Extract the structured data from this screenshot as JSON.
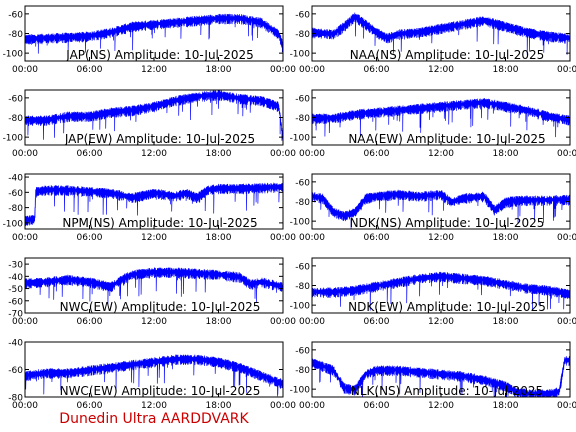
{
  "footer": {
    "text": "Dunedin Ultra AARDDVARK",
    "color": "#cc0000"
  },
  "colors": {
    "trace": "#0000ff",
    "axis": "#000000",
    "background": "#ffffff"
  },
  "chart_data": [
    {
      "type": "line",
      "title": "JAP(NS) Amplitude: 10-Jul-2025",
      "yticks": [
        -60,
        -80,
        -100
      ],
      "ylim": [
        -108,
        -52
      ],
      "xticks": [
        "00:00",
        "06:00",
        "12:00",
        "18:00",
        "00:00"
      ],
      "xlim": [
        0,
        24
      ],
      "series": [
        {
          "x": [
            0,
            2,
            4,
            6,
            8,
            10,
            12,
            14,
            16,
            18,
            20,
            22,
            23.6,
            24
          ],
          "y": [
            -85,
            -84,
            -83,
            -82,
            -78,
            -72,
            -70,
            -68,
            -66,
            -64,
            -64,
            -68,
            -80,
            -92
          ]
        }
      ]
    },
    {
      "type": "line",
      "title": "NAA(NS) Amplitude: 10-Jul-2025",
      "yticks": [
        -60,
        -80,
        -100
      ],
      "ylim": [
        -108,
        -52
      ],
      "xticks": [
        "00:00",
        "06:00",
        "12:00",
        "18:00",
        "00:00"
      ],
      "xlim": [
        0,
        24
      ],
      "series": [
        {
          "x": [
            0,
            2,
            3,
            4,
            5,
            6,
            7,
            8,
            10,
            12,
            14,
            16,
            18,
            20,
            22,
            24
          ],
          "y": [
            -78,
            -80,
            -72,
            -62,
            -70,
            -78,
            -84,
            -80,
            -78,
            -74,
            -70,
            -66,
            -72,
            -78,
            -82,
            -84
          ]
        }
      ]
    },
    {
      "type": "line",
      "title": "JAP(EW) Amplitude: 10-Jul-2025",
      "yticks": [
        -60,
        -80,
        -100
      ],
      "ylim": [
        -108,
        -52
      ],
      "xticks": [
        "00:00",
        "06:00",
        "12:00",
        "18:00",
        "00:00"
      ],
      "xlim": [
        0,
        24
      ],
      "series": [
        {
          "x": [
            0,
            2,
            4,
            6,
            8,
            10,
            12,
            14,
            16,
            18,
            20,
            22,
            23.6,
            24
          ],
          "y": [
            -82,
            -82,
            -78,
            -78,
            -74,
            -72,
            -68,
            -62,
            -58,
            -56,
            -60,
            -62,
            -68,
            -100
          ]
        }
      ]
    },
    {
      "type": "line",
      "title": "NAA(EW) Amplitude: 10-Jul-2025",
      "yticks": [
        -60,
        -80,
        -100
      ],
      "ylim": [
        -108,
        -52
      ],
      "xticks": [
        "00:00",
        "06:00",
        "12:00",
        "18:00",
        "00:00"
      ],
      "xlim": [
        0,
        24
      ],
      "series": [
        {
          "x": [
            0,
            2,
            4,
            6,
            8,
            10,
            12,
            14,
            16,
            18,
            20,
            22,
            24
          ],
          "y": [
            -80,
            -80,
            -76,
            -74,
            -72,
            -70,
            -68,
            -66,
            -64,
            -68,
            -72,
            -78,
            -82
          ]
        }
      ]
    },
    {
      "type": "line",
      "title": "NPM(NS) Amplitude: 10-Jul-2025",
      "yticks": [
        -40,
        -60,
        -80,
        -100
      ],
      "ylim": [
        -108,
        -36
      ],
      "xticks": [
        "00:00",
        "06:00",
        "12:00",
        "18:00",
        "00:00"
      ],
      "xlim": [
        0,
        24
      ],
      "series": [
        {
          "x": [
            0,
            0.9,
            1,
            2,
            4,
            6,
            8,
            10,
            12,
            14,
            15,
            16,
            17,
            18,
            20,
            22,
            24
          ],
          "y": [
            -96,
            -94,
            -58,
            -56,
            -56,
            -58,
            -60,
            -66,
            -60,
            -64,
            -60,
            -66,
            -56,
            -54,
            -54,
            -53,
            -52
          ]
        }
      ]
    },
    {
      "type": "line",
      "title": "NDK(NS) Amplitude: 10-Jul-2025",
      "yticks": [
        -60,
        -80,
        -100
      ],
      "ylim": [
        -108,
        -52
      ],
      "xticks": [
        "00:00",
        "06:00",
        "12:00",
        "18:00",
        "00:00"
      ],
      "xlim": [
        0,
        24
      ],
      "series": [
        {
          "x": [
            0,
            1,
            2,
            3,
            4,
            5,
            6,
            8,
            10,
            12,
            13,
            14,
            16,
            17,
            18,
            19,
            20,
            22,
            24
          ],
          "y": [
            -74,
            -76,
            -90,
            -94,
            -90,
            -76,
            -74,
            -72,
            -74,
            -72,
            -80,
            -76,
            -74,
            -88,
            -80,
            -78,
            -78,
            -78,
            -77
          ]
        }
      ]
    },
    {
      "type": "line",
      "title": "NWC(EW) Amplitude: 10-Jul-2025",
      "yticks": [
        -30,
        -40,
        -50,
        -60,
        -70
      ],
      "ylim": [
        -70,
        -25
      ],
      "xticks": [
        "00:00",
        "06:00",
        "12:00",
        "18:00",
        "00:00"
      ],
      "xlim": [
        0,
        24
      ],
      "series": [
        {
          "x": [
            0,
            2,
            4,
            6,
            8,
            9,
            10,
            12,
            14,
            16,
            18,
            20,
            21,
            22,
            24
          ],
          "y": [
            -45,
            -44,
            -42,
            -44,
            -48,
            -42,
            -38,
            -36,
            -36,
            -37,
            -38,
            -40,
            -46,
            -44,
            -48
          ]
        }
      ]
    },
    {
      "type": "line",
      "title": "NDK(EW) Amplitude: 10-Jul-2025",
      "yticks": [
        -60,
        -80,
        -100
      ],
      "ylim": [
        -108,
        -52
      ],
      "xticks": [
        "00:00",
        "06:00",
        "12:00",
        "18:00",
        "00:00"
      ],
      "xlim": [
        0,
        24
      ],
      "series": [
        {
          "x": [
            0,
            2,
            4,
            6,
            8,
            10,
            12,
            14,
            16,
            18,
            20,
            22,
            24
          ],
          "y": [
            -86,
            -86,
            -84,
            -80,
            -76,
            -72,
            -70,
            -72,
            -74,
            -78,
            -82,
            -84,
            -88
          ]
        }
      ]
    },
    {
      "type": "line",
      "title": "NWC(EW) Amplitude: 10-Jul-2025",
      "yticks": [
        -40,
        -60,
        -80
      ],
      "ylim": [
        -80,
        -40
      ],
      "xticks": [
        "00:00",
        "06:00",
        "12:00",
        "18:00",
        "00:00"
      ],
      "xlim": [
        0,
        24
      ],
      "series": [
        {
          "x": [
            0,
            2,
            4,
            6,
            8,
            10,
            12,
            14,
            16,
            18,
            20,
            22,
            24
          ],
          "y": [
            -64,
            -62,
            -62,
            -60,
            -58,
            -56,
            -54,
            -52,
            -52,
            -54,
            -58,
            -64,
            -70
          ]
        }
      ]
    },
    {
      "type": "line",
      "title": "NLK(NS) Amplitude: 10-Jul-2025",
      "yticks": [
        -60,
        -80,
        -100
      ],
      "ylim": [
        -108,
        -52
      ],
      "xticks": [
        "00:00",
        "06:00",
        "12:00",
        "18:00",
        "00:00"
      ],
      "xlim": [
        0,
        24
      ],
      "series": [
        {
          "x": [
            0,
            2,
            3,
            4,
            5,
            6,
            8,
            10,
            12,
            14,
            16,
            18,
            19,
            20,
            22,
            23,
            23.5,
            24
          ],
          "y": [
            -72,
            -80,
            -98,
            -100,
            -84,
            -80,
            -80,
            -82,
            -84,
            -86,
            -90,
            -96,
            -102,
            -104,
            -104,
            -102,
            -70,
            -70
          ]
        }
      ]
    }
  ]
}
